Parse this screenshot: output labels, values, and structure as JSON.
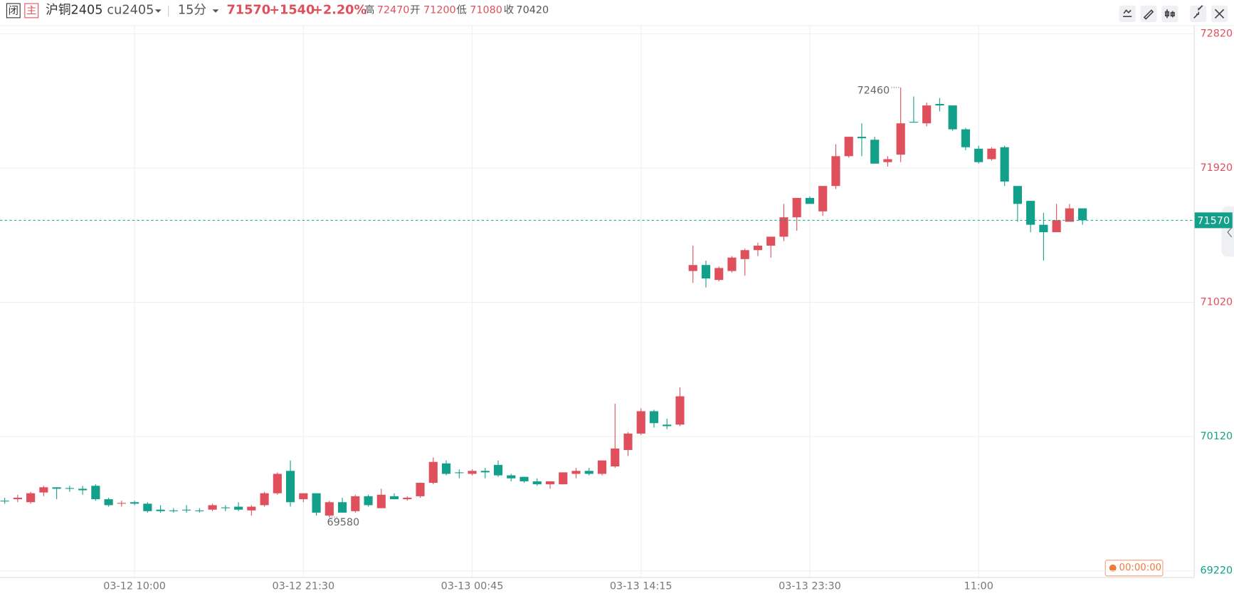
{
  "header": {
    "badge_close": "闭",
    "badge_main": "主",
    "symbol": "沪铜2405",
    "code": "cu2405",
    "period": "15分",
    "price": "71570",
    "change": "+1540",
    "change_pct": "+2.20%",
    "stats": [
      {
        "label": "高",
        "value": "72470"
      },
      {
        "label": "开",
        "value": "71200"
      },
      {
        "label": "低",
        "value": "71080"
      },
      {
        "label": "收",
        "value": "70420"
      }
    ],
    "timer": "00:00:00"
  },
  "chart_data": {
    "type": "candlestick",
    "up_color": "#e0505c",
    "down_color": "#13a08a",
    "grid": true,
    "categories": [
      null,
      null,
      null,
      null,
      null,
      null,
      null,
      null,
      null,
      null,
      "03-12 10:00",
      null,
      null,
      null,
      null,
      null,
      null,
      null,
      null,
      null,
      null,
      null,
      null,
      "03-12 21:30",
      null,
      null,
      null,
      null,
      null,
      null,
      null,
      null,
      null,
      null,
      null,
      null,
      "03-13 00:45",
      null,
      null,
      null,
      null,
      null,
      null,
      null,
      null,
      null,
      null,
      null,
      null,
      "03-13 14:15",
      null,
      null,
      null,
      null,
      null,
      null,
      null,
      null,
      null,
      null,
      null,
      null,
      "03-13 23:30",
      null,
      null,
      null,
      null,
      null,
      null,
      null,
      null,
      null,
      null,
      null,
      null,
      "11:00",
      null,
      null,
      null,
      null,
      null,
      null,
      null,
      null
    ],
    "open": [
      69690,
      69700,
      69680,
      69745,
      69780,
      69775,
      69770,
      69790,
      69700,
      69670,
      69680,
      69670,
      69630,
      69625,
      69630,
      69625,
      69630,
      69645,
      69650,
      69625,
      69660,
      69740,
      69890,
      69700,
      69740,
      69590,
      69680,
      69620,
      69720,
      69640,
      69720,
      69700,
      69720,
      69810,
      69940,
      69880,
      69870,
      69890,
      69930,
      69860,
      69850,
      69820,
      69800,
      69800,
      69870,
      69890,
      69870,
      69920,
      70030,
      70140,
      70290,
      70200,
      70200,
      71230,
      71270,
      71170,
      71230,
      71310,
      71370,
      71400,
      71460,
      71590,
      71720,
      71630,
      71800,
      72000,
      72130,
      72110,
      71960,
      72010,
      72230,
      72220,
      72350,
      72340,
      72180,
      72050,
      71980,
      72060,
      71800,
      71700,
      71540,
      71490,
      71560,
      71650
    ],
    "high": [
      69710,
      69730,
      69750,
      69790,
      69780,
      69790,
      69790,
      69800,
      69710,
      69690,
      69690,
      69680,
      69660,
      69640,
      69660,
      69640,
      69670,
      69660,
      69680,
      69660,
      69750,
      69880,
      69960,
      69740,
      69740,
      69690,
      69710,
      69730,
      69730,
      69770,
      69740,
      69720,
      69810,
      69980,
      69960,
      69900,
      69900,
      69910,
      69960,
      69870,
      69850,
      69840,
      69820,
      69880,
      69910,
      69910,
      69960,
      70340,
      70150,
      70310,
      70300,
      70240,
      70450,
      71400,
      71300,
      71260,
      71330,
      71380,
      71420,
      71460,
      71680,
      71720,
      71730,
      71800,
      72080,
      72130,
      72220,
      72130,
      72000,
      72460,
      72400,
      72360,
      72390,
      72340,
      72190,
      72070,
      72060,
      72070,
      71800,
      71700,
      71620,
      71680,
      71680,
      71650
    ],
    "low": [
      69670,
      69680,
      69670,
      69720,
      69700,
      69750,
      69730,
      69690,
      69650,
      69650,
      69660,
      69610,
      69610,
      69610,
      69610,
      69610,
      69620,
      69620,
      69620,
      69590,
      69650,
      69730,
      69650,
      69680,
      69590,
      69580,
      69610,
      69610,
      69650,
      69640,
      69700,
      69690,
      69710,
      69800,
      69860,
      69840,
      69860,
      69840,
      69850,
      69820,
      69810,
      69790,
      69770,
      69800,
      69840,
      69860,
      69860,
      69910,
      69990,
      70130,
      70180,
      70170,
      70190,
      71150,
      71120,
      71160,
      71220,
      71200,
      71330,
      71320,
      71430,
      71500,
      71680,
      71600,
      71780,
      71990,
      72000,
      71950,
      71930,
      71960,
      72225,
      72200,
      72300,
      72170,
      72040,
      71950,
      71970,
      71800,
      71560,
      71490,
      71300,
      71490,
      71560,
      71540
    ],
    "close": [
      69685,
      69710,
      69740,
      69780,
      69770,
      69770,
      69760,
      69700,
      69660,
      69675,
      69670,
      69620,
      69620,
      69620,
      69625,
      69620,
      69660,
      69640,
      69630,
      69650,
      69740,
      69870,
      69680,
      69740,
      69610,
      69680,
      69610,
      69720,
      69660,
      69730,
      69700,
      69710,
      69810,
      69950,
      69870,
      69875,
      69890,
      69880,
      69860,
      69840,
      69820,
      69800,
      69820,
      69880,
      69890,
      69870,
      69960,
      70040,
      70140,
      70290,
      70210,
      70190,
      70390,
      71270,
      71180,
      71250,
      71320,
      71370,
      71400,
      71460,
      71590,
      71720,
      71680,
      71800,
      72000,
      72130,
      72120,
      71950,
      71980,
      72220,
      72225,
      72340,
      72340,
      72180,
      72060,
      71960,
      72050,
      71830,
      71680,
      71540,
      71490,
      71570,
      71650,
      71570
    ],
    "ylim": [
      69220,
      72820
    ],
    "yticks": [
      69220,
      70120,
      71020,
      71920,
      72820
    ],
    "last_price": 71570,
    "high_label": "72460",
    "low_label": "69580"
  }
}
